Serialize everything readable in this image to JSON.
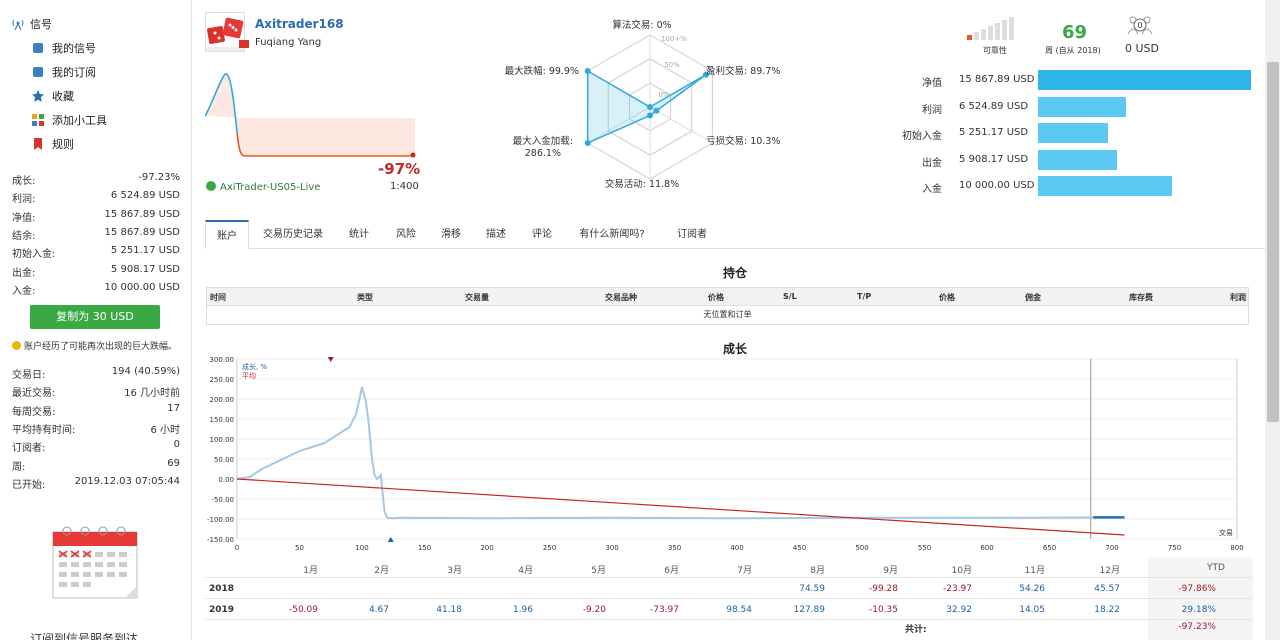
{
  "sidebar": {
    "header": "信号",
    "nav": [
      {
        "label": "我的信号",
        "icon": "signal-icon"
      },
      {
        "label": "我的订阅",
        "icon": "subscription-icon"
      },
      {
        "label": "收藏",
        "icon": "star-icon"
      },
      {
        "label": "添加小工具",
        "icon": "widget-icon"
      },
      {
        "label": "规则",
        "icon": "bookmark-icon"
      }
    ],
    "stats1": [
      {
        "label": "成长:",
        "value": "-97.23%"
      },
      {
        "label": "利润:",
        "value": "6 524.89 USD"
      },
      {
        "label": "净值:",
        "value": "15 867.89 USD"
      },
      {
        "label": "结余:",
        "value": "15 867.89 USD"
      },
      {
        "label": "初始入金:",
        "value": "5 251.17 USD"
      },
      {
        "label": "出金:",
        "value": "5 908.17 USD"
      },
      {
        "label": "入金:",
        "value": "10 000.00 USD"
      }
    ],
    "copy_button": "复制为 30 USD",
    "warning": "账户经历了可能再次出现的巨大跌幅。",
    "stats2": [
      {
        "label": "交易日:",
        "value": "194 (40.59%)"
      },
      {
        "label": "最近交易:",
        "value": "16 几小时前"
      },
      {
        "label": "每周交易:",
        "value": "17"
      },
      {
        "label": "平均持有时间:",
        "value": "6 小时"
      },
      {
        "label": "订阅者:",
        "value": "0"
      },
      {
        "label": "周:",
        "value": "69"
      },
      {
        "label": "已开始:",
        "value": "2019.12.03 07:05:44"
      }
    ],
    "promo": "订阅到信号服务到达"
  },
  "header": {
    "trader_name": "Axitrader168",
    "owner": "Fuqiang Yang",
    "growth": "-97%",
    "server": "AxiTrader-US05-Live",
    "leverage": "1:400"
  },
  "radar": {
    "labels": {
      "top": "算法交易: 0%",
      "top_right": "盈利交易: 89.7%",
      "bottom_right": "亏损交易: 10.3%",
      "bottom": "交易活动: 11.8%",
      "bottom_left_1": "最大入金加载:",
      "bottom_left_2": "286.1%",
      "top_left": "最大跌幅: 99.9%"
    },
    "ticks": [
      "100+%",
      "50%",
      "0%"
    ],
    "values": {
      "algo": 0,
      "profit": 89.7,
      "loss": 10.3,
      "activity": 11.8,
      "deposit_load": 100,
      "drawdown": 99.9
    }
  },
  "right": {
    "reliability_label": "可靠性",
    "weeks": "69",
    "weeks_label": "周 (自从 2018)",
    "subscribers_count": "0",
    "subscribers_value": "0 USD",
    "bars": [
      {
        "label": "净值",
        "value": "15 867.89 USD",
        "amount": 15867.89
      },
      {
        "label": "利润",
        "value": "6 524.89 USD",
        "amount": 6524.89
      },
      {
        "label": "初始入金",
        "value": "5 251.17 USD",
        "amount": 5251.17
      },
      {
        "label": "出金",
        "value": "5 908.17 USD",
        "amount": 5908.17
      },
      {
        "label": "入金",
        "value": "10 000.00 USD",
        "amount": 10000
      }
    ]
  },
  "tabs": [
    "账户",
    "交易历史记录",
    "统计",
    "风险",
    "滑移",
    "描述",
    "评论",
    "有什么新闻吗?",
    "订阅者"
  ],
  "positions": {
    "title": "持仓",
    "columns": [
      "时间",
      "类型",
      "交易量",
      "交易品种",
      "价格",
      "S/L",
      "T/P",
      "价格",
      "佣金",
      "库存费",
      "利润"
    ],
    "empty": "无位置和订单"
  },
  "growth": {
    "title": "成长",
    "legend_growth": "成长, %",
    "legend_avg": "平均",
    "corner_label": "交易",
    "y_ticks": [
      "300.00",
      "250.00",
      "200.00",
      "150.00",
      "100.00",
      "50.00",
      "0.00",
      "-50.00",
      "-100.00",
      "-150.00"
    ],
    "x_ticks": [
      "0",
      "50",
      "100",
      "150",
      "200",
      "250",
      "300",
      "350",
      "400",
      "450",
      "500",
      "550",
      "600",
      "650",
      "700",
      "750",
      "800"
    ]
  },
  "chart_data": {
    "type": "line",
    "title": "成长",
    "xlim": [
      0,
      800
    ],
    "ylim": [
      -150,
      300
    ],
    "series": [
      {
        "name": "成长, %",
        "x": [
          0,
          10,
          20,
          30,
          40,
          50,
          60,
          70,
          80,
          90,
          95,
          98,
          100,
          103,
          105,
          108,
          110,
          112,
          115,
          118,
          120,
          125,
          130,
          200,
          300,
          400,
          500,
          600,
          700,
          710
        ],
        "y": [
          0,
          5,
          25,
          40,
          55,
          70,
          80,
          90,
          110,
          130,
          160,
          200,
          230,
          195,
          150,
          50,
          10,
          0,
          10,
          -80,
          -97,
          -98,
          -97,
          -98,
          -97,
          -98,
          -97,
          -97,
          -96,
          -96
        ]
      },
      {
        "name": "平均",
        "x": [
          0,
          710
        ],
        "y": [
          0,
          -140
        ]
      }
    ]
  },
  "monthly": {
    "months": [
      "1月",
      "2月",
      "3月",
      "4月",
      "5月",
      "6月",
      "7月",
      "8月",
      "9月",
      "10月",
      "11月",
      "12月",
      "YTD"
    ],
    "rows": [
      {
        "year": "2018",
        "values": [
          "",
          "",
          "",
          "",
          "",
          "",
          "",
          "74.59",
          "-99.28",
          "-23.97",
          "54.26",
          "45.57",
          "-97.86%"
        ]
      },
      {
        "year": "2019",
        "values": [
          "-50.09",
          "4.67",
          "41.18",
          "1.96",
          "-9.20",
          "-73.97",
          "98.54",
          "127.89",
          "-10.35",
          "32.92",
          "14.05",
          "18.22",
          "29.18%"
        ]
      }
    ],
    "total_label": "共计:",
    "total_value": "-97.23%"
  }
}
